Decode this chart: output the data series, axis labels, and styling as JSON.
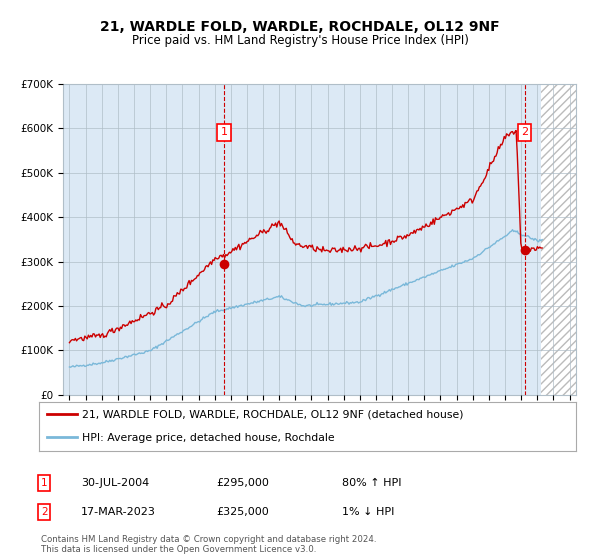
{
  "title": "21, WARDLE FOLD, WARDLE, ROCHDALE, OL12 9NF",
  "subtitle": "Price paid vs. HM Land Registry's House Price Index (HPI)",
  "legend_line1": "21, WARDLE FOLD, WARDLE, ROCHDALE, OL12 9NF (detached house)",
  "legend_line2": "HPI: Average price, detached house, Rochdale",
  "annotation1_date": "30-JUL-2004",
  "annotation1_price": "£295,000",
  "annotation1_hpi": "80% ↑ HPI",
  "annotation2_date": "17-MAR-2023",
  "annotation2_price": "£325,000",
  "annotation2_hpi": "1% ↓ HPI",
  "footer": "Contains HM Land Registry data © Crown copyright and database right 2024.\nThis data is licensed under the Open Government Licence v3.0.",
  "hpi_color": "#7ab8d9",
  "price_color": "#cc0000",
  "dot_color": "#cc0000",
  "bg_color": "#dce9f5",
  "hatch_bg": "#e8e8e8",
  "grid_color": "#b0bec8",
  "marker1_x": 2004.58,
  "marker1_y": 295000,
  "marker2_x": 2023.21,
  "marker2_y": 325000,
  "ylim": [
    0,
    700000
  ],
  "xlim_start": 1994.6,
  "xlim_end": 2026.4,
  "future_start": 2024.25
}
